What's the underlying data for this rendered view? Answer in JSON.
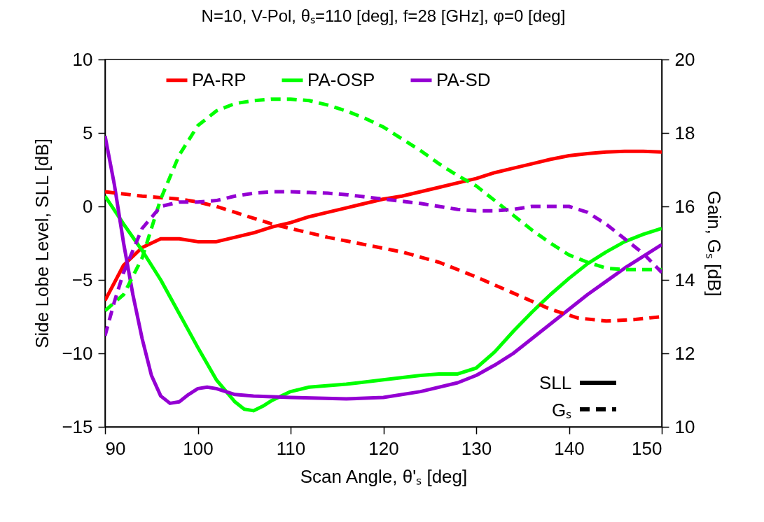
{
  "chart_data": {
    "type": "line",
    "title": "N=10, V-Pol, θₛ=110 [deg], f=28 [GHz], φ=0 [deg]",
    "xlabel": "Scan Angle, θ'ₛ [deg]",
    "ylabel": "Side Lobe Level, SLL [dB]",
    "y2label": "Gain, Gₛ [dB]",
    "xlim": [
      90,
      150
    ],
    "xticks": [
      90,
      100,
      110,
      120,
      130,
      140,
      150
    ],
    "ylim": [
      -15,
      10
    ],
    "yticks": [
      -15,
      -10,
      -5,
      0,
      5,
      10
    ],
    "y2lim": [
      10,
      20
    ],
    "y2ticks": [
      10,
      12,
      14,
      16,
      18,
      20
    ],
    "grid": false,
    "legend": "top",
    "annotations": [
      "SLL",
      "Gₛ"
    ],
    "series": [
      {
        "name": "PA-RP",
        "color": "#ff0000",
        "line_style": "solid",
        "x": [
          90,
          92,
          94,
          96,
          98,
          100,
          102,
          104,
          106,
          108,
          110,
          112,
          114,
          116,
          118,
          120,
          122,
          124,
          126,
          128,
          130,
          132,
          134,
          136,
          138,
          140,
          142,
          144,
          146,
          148,
          150
        ],
        "values": [
          -6.4,
          -4.0,
          -2.8,
          -2.2,
          -2.2,
          -2.4,
          -2.4,
          -2.1,
          -1.8,
          -1.4,
          -1.1,
          -0.7,
          -0.4,
          -0.1,
          0.2,
          0.5,
          0.7,
          1.0,
          1.3,
          1.6,
          1.9,
          2.3,
          2.6,
          2.9,
          3.2,
          3.45,
          3.6,
          3.7,
          3.75,
          3.75,
          3.7
        ]
      },
      {
        "name": "PA-OSP",
        "color": "#00ff00",
        "line_style": "solid",
        "x": [
          90,
          92,
          94,
          96,
          98,
          100,
          102,
          104,
          105,
          106,
          107,
          108,
          110,
          112,
          116,
          120,
          124,
          126,
          128,
          130,
          132,
          134,
          136,
          138,
          140,
          142,
          144,
          146,
          148,
          150
        ],
        "values": [
          0.7,
          -1.2,
          -3.0,
          -5.0,
          -7.3,
          -9.6,
          -11.8,
          -13.3,
          -13.8,
          -13.9,
          -13.6,
          -13.2,
          -12.6,
          -12.3,
          -12.1,
          -11.8,
          -11.5,
          -11.4,
          -11.4,
          -11.0,
          -9.9,
          -8.5,
          -7.2,
          -6.0,
          -4.9,
          -3.9,
          -3.1,
          -2.4,
          -1.9,
          -1.5
        ]
      },
      {
        "name": "PA-SD",
        "color": "#9400d3",
        "line_style": "solid",
        "x": [
          90,
          91,
          92,
          93,
          94,
          95,
          96,
          97,
          98,
          99,
          100,
          101,
          102,
          104,
          106,
          110,
          116,
          120,
          124,
          128,
          130,
          132,
          134,
          136,
          138,
          140,
          142,
          144,
          146,
          148,
          150
        ],
        "values": [
          4.8,
          1.5,
          -2.5,
          -6.0,
          -9.0,
          -11.5,
          -12.9,
          -13.4,
          -13.3,
          -12.8,
          -12.4,
          -12.3,
          -12.4,
          -12.8,
          -12.9,
          -13.0,
          -13.1,
          -13.0,
          -12.6,
          -12.0,
          -11.5,
          -10.8,
          -10.0,
          -9.0,
          -8.0,
          -7.0,
          -6.0,
          -5.1,
          -4.2,
          -3.4,
          -2.6
        ]
      },
      {
        "color": "#ff0000",
        "line_style": "dashed",
        "axis": "y2",
        "x": [
          90,
          94,
          98,
          100,
          102,
          104,
          106,
          108,
          110,
          114,
          118,
          122,
          126,
          130,
          134,
          138,
          141,
          144,
          147,
          150
        ],
        "values": [
          16.4,
          16.28,
          16.2,
          16.12,
          16.0,
          15.84,
          15.68,
          15.52,
          15.4,
          15.16,
          14.96,
          14.76,
          14.48,
          14.08,
          13.64,
          13.2,
          12.96,
          12.88,
          12.92,
          13.0
        ]
      },
      {
        "color": "#00ff00",
        "line_style": "dashed",
        "axis": "y2",
        "x": [
          90,
          92,
          94,
          96,
          98,
          100,
          102,
          104,
          106,
          108,
          110,
          112,
          114,
          116,
          118,
          120,
          122,
          124,
          126,
          128,
          130,
          132,
          134,
          136,
          138,
          140,
          142,
          144,
          146,
          148,
          150
        ],
        "values": [
          13.16,
          13.6,
          14.6,
          16.2,
          17.4,
          18.2,
          18.6,
          18.8,
          18.88,
          18.92,
          18.92,
          18.88,
          18.76,
          18.6,
          18.4,
          18.16,
          17.84,
          17.52,
          17.16,
          16.84,
          16.56,
          16.16,
          15.76,
          15.36,
          15.0,
          14.68,
          14.48,
          14.32,
          14.28,
          14.28,
          14.28
        ]
      },
      {
        "color": "#9400d3",
        "line_style": "dashed",
        "axis": "y2",
        "x": [
          90,
          91,
          92,
          94,
          96,
          98,
          100,
          102,
          104,
          106,
          108,
          110,
          112,
          114,
          116,
          120,
          124,
          128,
          130,
          132,
          134,
          136,
          138,
          140,
          142,
          144,
          146,
          148,
          150
        ],
        "values": [
          12.48,
          13.4,
          14.2,
          15.4,
          16.0,
          16.12,
          16.12,
          16.16,
          16.28,
          16.36,
          16.4,
          16.4,
          16.38,
          16.36,
          16.32,
          16.2,
          16.08,
          15.92,
          15.88,
          15.88,
          15.92,
          16.0,
          16.0,
          16.0,
          15.84,
          15.52,
          15.12,
          14.72,
          14.2
        ]
      }
    ]
  }
}
